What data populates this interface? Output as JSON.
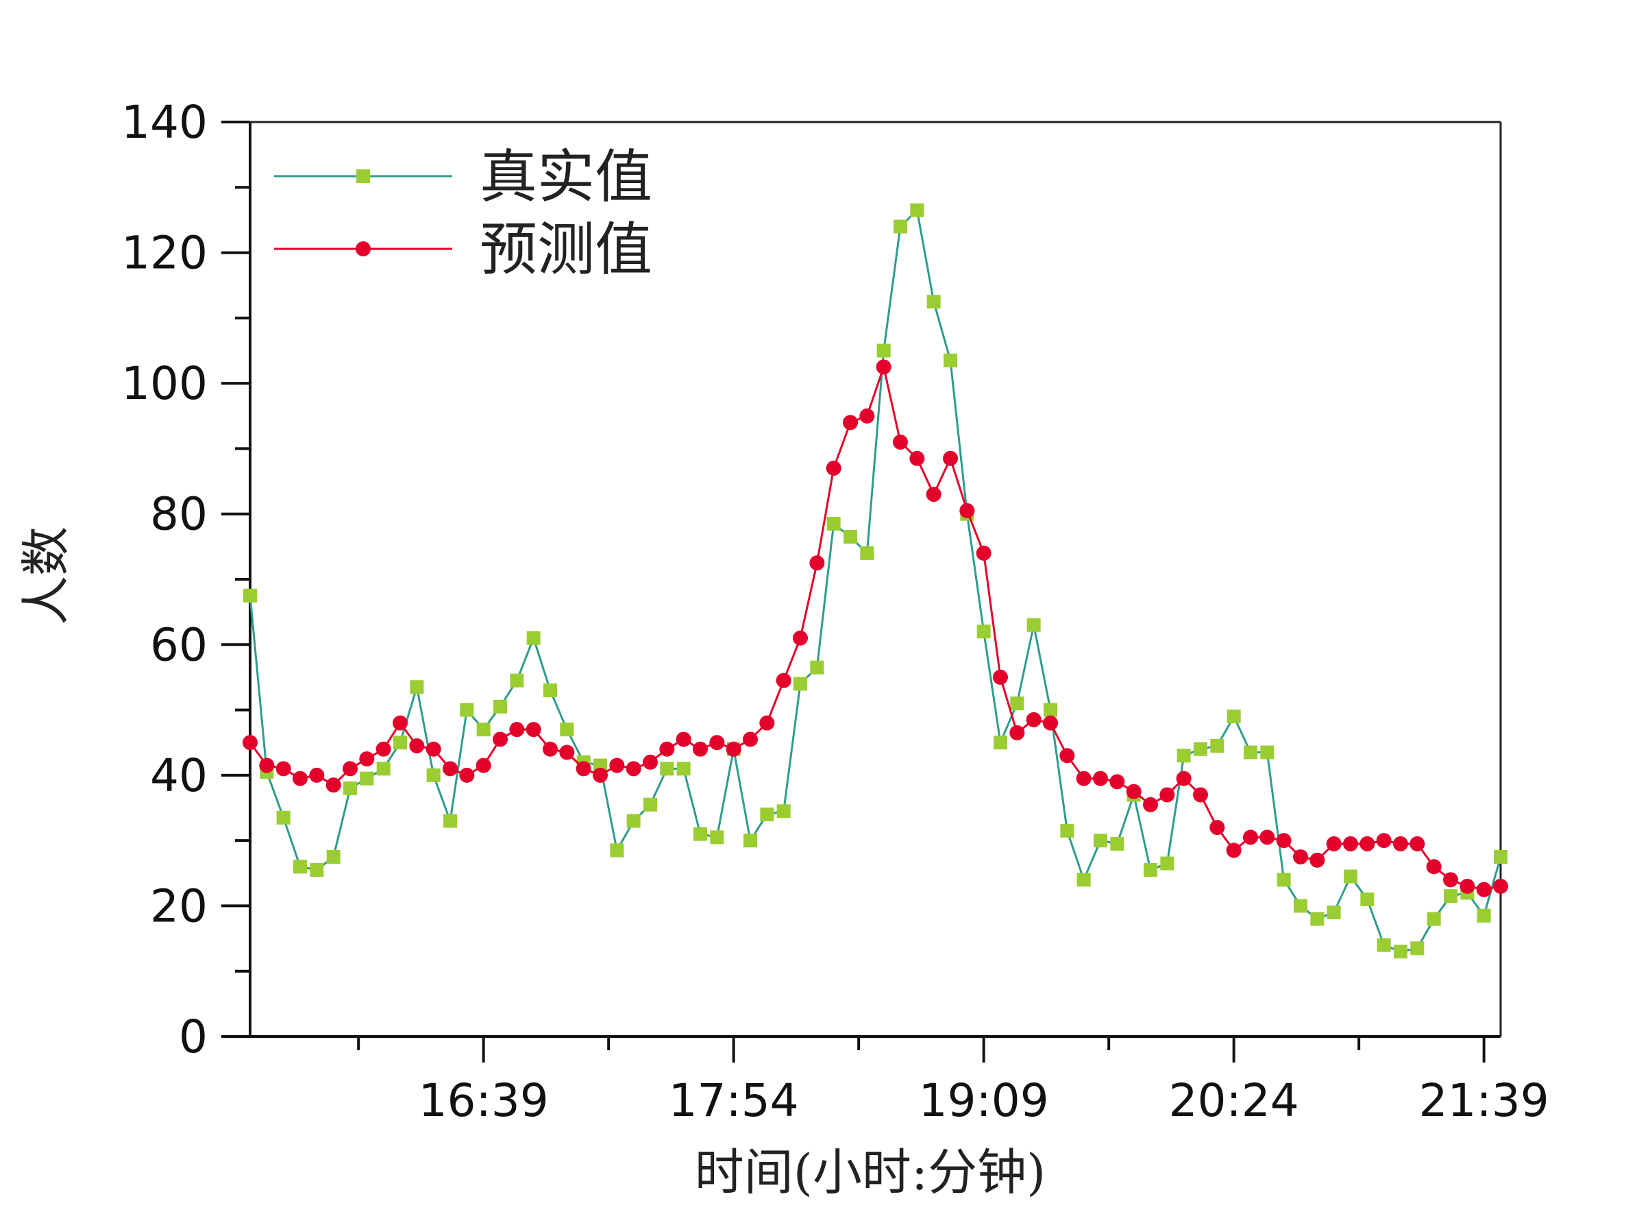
{
  "chart_data": {
    "type": "line",
    "xlabel": "时间(小时:分钟)",
    "ylabel": "人数",
    "ylim": [
      0,
      140
    ],
    "yticks": [
      0,
      20,
      40,
      60,
      80,
      100,
      120,
      140
    ],
    "xlim": [
      0,
      75
    ],
    "xticks": [
      {
        "pos": 14,
        "label": "16:39"
      },
      {
        "pos": 29,
        "label": "17:54"
      },
      {
        "pos": 44,
        "label": "19:09"
      },
      {
        "pos": 59,
        "label": "20:24"
      },
      {
        "pos": 74,
        "label": "21:39"
      }
    ],
    "legend": "top-left",
    "series": [
      {
        "name": "真实值",
        "color": "#9acd32",
        "line_color": "#2e9c8a",
        "marker": "square",
        "values": [
          67.5,
          40.5,
          33.5,
          26,
          25.5,
          27.5,
          38,
          39.5,
          41,
          45,
          53.5,
          40,
          33,
          50,
          47,
          50.5,
          54.5,
          61,
          53,
          47,
          42,
          41.5,
          28.5,
          33,
          35.5,
          41,
          41,
          31,
          30.5,
          44,
          30,
          34,
          34.5,
          54,
          56.5,
          78.5,
          76.5,
          74,
          105,
          124,
          126.5,
          112.5,
          103.5,
          80,
          62,
          45,
          51,
          63,
          50,
          31.5,
          24,
          30,
          29.5,
          37,
          25.5,
          26.5,
          43,
          44,
          44.5,
          49,
          43.5,
          43.5,
          24,
          20,
          18,
          19,
          24.5,
          21,
          14,
          13,
          13.5,
          18,
          21.5,
          22,
          18.5,
          27.5
        ]
      },
      {
        "name": "预测值",
        "color": "#e3002b",
        "line_color": "#e3002b",
        "marker": "circle",
        "values": [
          45,
          41.5,
          41,
          39.5,
          40,
          38.5,
          41,
          42.5,
          44,
          48,
          44.5,
          44,
          41,
          40,
          41.5,
          45.5,
          47,
          47,
          44,
          43.5,
          41,
          40,
          41.5,
          41,
          42,
          44,
          45.5,
          44,
          45,
          44,
          45.5,
          48,
          54.5,
          61,
          72.5,
          87,
          94,
          95,
          102.5,
          91,
          88.5,
          83,
          88.5,
          80.5,
          74,
          55,
          46.5,
          48.5,
          48,
          43,
          39.5,
          39.5,
          39,
          37.5,
          35.5,
          37,
          39.5,
          37,
          32,
          28.5,
          30.5,
          30.5,
          30,
          27.5,
          27,
          29.5,
          29.5,
          29.5,
          30,
          29.5,
          29.5,
          26,
          24,
          23,
          22.5,
          23
        ]
      }
    ]
  }
}
